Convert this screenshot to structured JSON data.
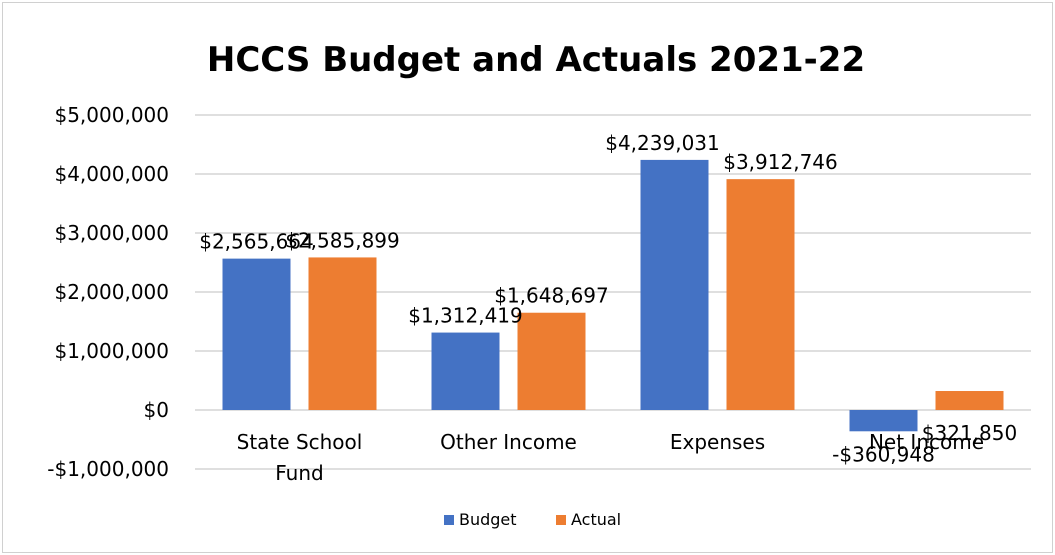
{
  "chart_data": {
    "type": "bar",
    "title": "HCCS Budget and Actuals 2021-22",
    "categories": [
      [
        "State School",
        "Fund"
      ],
      [
        "Other Income"
      ],
      [
        "Expenses"
      ],
      [
        "Net Income"
      ]
    ],
    "series": [
      {
        "name": "Budget",
        "color": "#4472C4",
        "values": [
          2565664,
          1312419,
          4239031,
          -360948
        ],
        "labels": [
          "$2,565,664",
          "$1,312,419",
          "$4,239,031",
          "-$360,948"
        ]
      },
      {
        "name": "Actual",
        "color": "#ED7D31",
        "values": [
          2585899,
          1648697,
          3912746,
          321850
        ],
        "labels": [
          "$2,585,899",
          "$1,648,697",
          "$3,912,746",
          "$321,850"
        ]
      }
    ],
    "ylim": [
      -1000000,
      5000000
    ],
    "yticks": [
      {
        "value": 5000000,
        "label": "$5,000,000"
      },
      {
        "value": 4000000,
        "label": "$4,000,000"
      },
      {
        "value": 3000000,
        "label": "$3,000,000"
      },
      {
        "value": 2000000,
        "label": "$2,000,000"
      },
      {
        "value": 1000000,
        "label": "$1,000,000"
      },
      {
        "value": 0,
        "label": "$0"
      },
      {
        "value": -1000000,
        "label": "-$1,000,000"
      }
    ],
    "grid": true,
    "legend_position": "bottom"
  }
}
